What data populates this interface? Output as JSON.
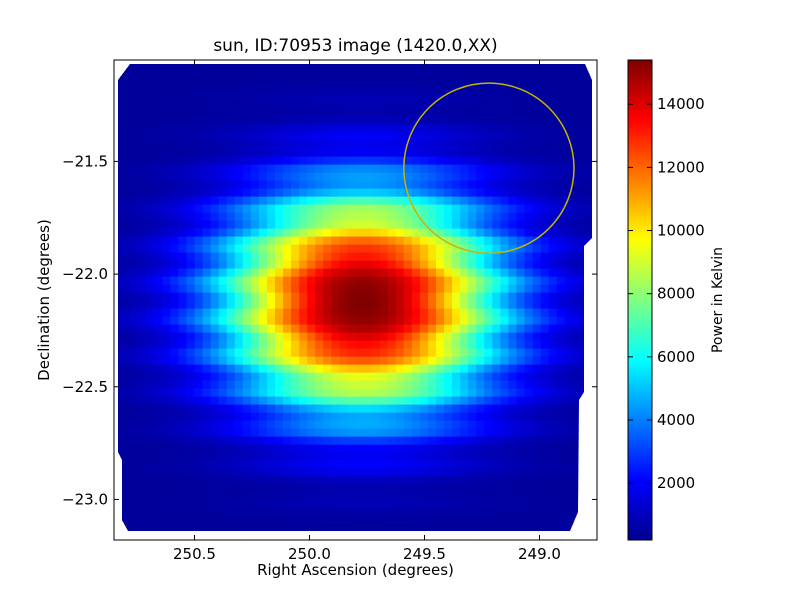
{
  "chart_data": {
    "type": "heatmap",
    "title": "sun, ID:70953 image (1420.0,XX)",
    "xlabel": "Right Ascension (degrees)",
    "ylabel": "Declination (degrees)",
    "xlim": [
      250.85,
      248.75
    ],
    "ylim": [
      -23.18,
      -21.05
    ],
    "x_ticks": [
      250.5,
      250.0,
      249.5,
      249.0
    ],
    "x_tick_labels": [
      "250.5",
      "250.0",
      "249.5",
      "249.0"
    ],
    "y_ticks": [
      -21.5,
      -22.0,
      -22.5,
      -23.0
    ],
    "y_tick_labels": [
      "−21.5",
      "−22.0",
      "−22.5",
      "−23.0"
    ],
    "colorbar": {
      "label": "Power in Kelvin",
      "colormap": "jet",
      "min": 200,
      "max": 15400,
      "ticks": [
        2000,
        4000,
        6000,
        8000,
        10000,
        12000,
        14000
      ],
      "tick_labels": [
        "2000",
        "4000",
        "6000",
        "8000",
        "10000",
        "12000",
        "14000"
      ]
    },
    "source": {
      "ra_center": 249.77,
      "dec_center": -22.12,
      "peak_value": 15400,
      "background_value": 600,
      "half_width_ra": 0.55,
      "half_width_dec": 0.45
    },
    "circle": {
      "ra_center": 249.22,
      "dec_center": -21.53,
      "radius_ra": 0.37,
      "color": "#c8b400"
    },
    "grid": false,
    "legend": "none"
  }
}
